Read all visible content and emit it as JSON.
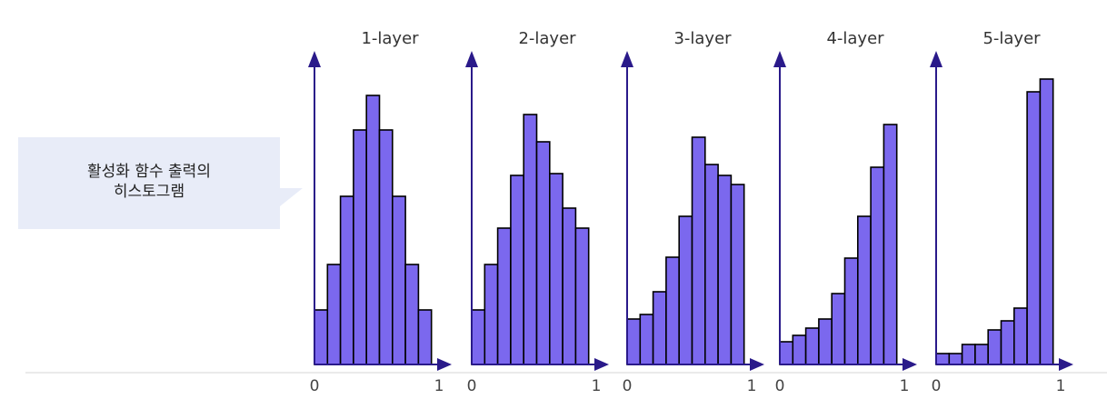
{
  "callout": {
    "line1": "활성화 함수 출력의",
    "line2": "히스토그램"
  },
  "colors": {
    "bar_fill": "#7b68ee",
    "bar_stroke": "#000000",
    "axis": "#2a1a8a",
    "baseline": "#e3e3e3",
    "callout_bg": "#e8ecf8"
  },
  "chart_data": [
    {
      "type": "bar",
      "title": "1-layer",
      "xlabel": "",
      "ylabel": "",
      "xlim": [
        0,
        1
      ],
      "x_ticks": [
        "0",
        "1"
      ],
      "values": [
        60,
        110,
        185,
        258,
        296,
        258,
        185,
        110,
        60
      ]
    },
    {
      "type": "bar",
      "title": "2-layer",
      "xlabel": "",
      "ylabel": "",
      "xlim": [
        0,
        1
      ],
      "x_ticks": [
        "0",
        "1"
      ],
      "values": [
        60,
        110,
        150,
        208,
        275,
        245,
        210,
        172,
        150
      ]
    },
    {
      "type": "bar",
      "title": "3-layer",
      "xlabel": "",
      "ylabel": "",
      "xlim": [
        0,
        1
      ],
      "x_ticks": [
        "0",
        "1"
      ],
      "values": [
        50,
        55,
        80,
        118,
        163,
        250,
        220,
        208,
        198
      ]
    },
    {
      "type": "bar",
      "title": "4-layer",
      "xlabel": "",
      "ylabel": "",
      "xlim": [
        0,
        1
      ],
      "x_ticks": [
        "0",
        "1"
      ],
      "values": [
        25,
        32,
        40,
        50,
        78,
        117,
        163,
        217,
        264
      ]
    },
    {
      "type": "bar",
      "title": "5-layer",
      "xlabel": "",
      "ylabel": "",
      "xlim": [
        0,
        1
      ],
      "x_ticks": [
        "0",
        "1"
      ],
      "values": [
        12,
        12,
        22,
        22,
        38,
        48,
        62,
        300,
        314
      ]
    }
  ]
}
